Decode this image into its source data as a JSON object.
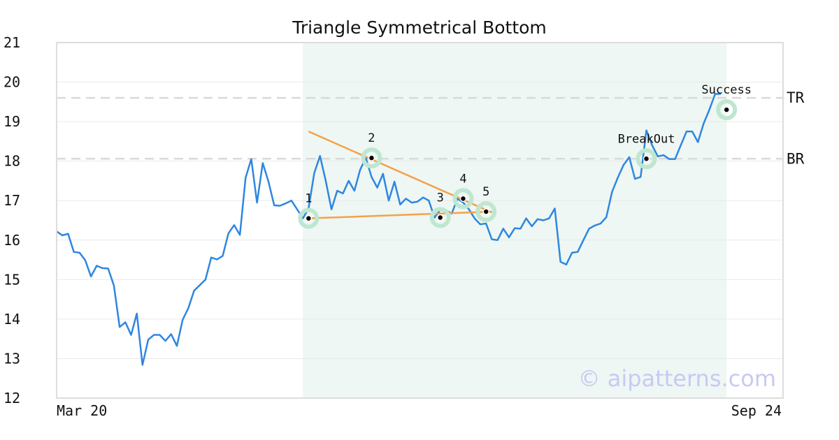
{
  "chart_data": {
    "type": "line",
    "title": "Triangle Symmetrical Bottom",
    "xlabel": "",
    "ylabel": "",
    "ylim": [
      12,
      21
    ],
    "y_ticks": [
      12,
      13,
      14,
      15,
      16,
      17,
      18,
      19,
      20,
      21
    ],
    "x_ticks": [
      "Mar 20",
      "Sep 24"
    ],
    "grid": true,
    "watermark": "© aipatterns.com",
    "colors": {
      "price": "#2f86e0",
      "trendline": "#f5a04a",
      "highlight": "#eef7f3",
      "marker_halo": "#bfe7d0",
      "level_line": "#d9d9d9",
      "frame": "#dddddd",
      "watermark": "#c9c9f3"
    },
    "series": [
      {
        "values": [
          16.22,
          16.12,
          16.16,
          15.7,
          15.68,
          15.49,
          15.08,
          15.35,
          15.29,
          15.28,
          14.85,
          13.8,
          13.92,
          13.6,
          14.14,
          12.84,
          13.48,
          13.6,
          13.6,
          13.45,
          13.62,
          13.32,
          13.98,
          14.28,
          14.72,
          14.86,
          15.0,
          15.56,
          15.51,
          15.6,
          16.17,
          16.38,
          16.13,
          17.58,
          18.05,
          16.95,
          17.95,
          17.48,
          16.88,
          16.87,
          16.93,
          17.0,
          16.78,
          16.55,
          16.8,
          17.7,
          18.13,
          17.5,
          16.78,
          17.25,
          17.18,
          17.5,
          17.25,
          17.78,
          18.08,
          17.6,
          17.33,
          17.68,
          17.0,
          17.48,
          16.9,
          17.05,
          16.95,
          16.97,
          17.08,
          17.0,
          16.57,
          16.76,
          16.75,
          16.67,
          17.05,
          16.95,
          16.78,
          16.55,
          16.4,
          16.42,
          16.02,
          16.0,
          16.29,
          16.07,
          16.3,
          16.29,
          16.55,
          16.35,
          16.53,
          16.5,
          16.55,
          16.8,
          15.45,
          15.38,
          15.68,
          15.7,
          16.0,
          16.29,
          16.37,
          16.42,
          16.58,
          17.22,
          17.58,
          17.9,
          18.1,
          17.55,
          17.6,
          18.78,
          18.4,
          18.12,
          18.15,
          18.05,
          18.05,
          18.4,
          18.75,
          18.75,
          18.48,
          18.95,
          19.3,
          19.7,
          19.7
        ]
      }
    ],
    "highlight_range": {
      "start_index": 43,
      "end_index": 117
    },
    "trendlines": [
      {
        "from": {
          "index": 44,
          "value": 18.75
        },
        "to": {
          "index": 76,
          "value": 16.7
        }
      },
      {
        "from": {
          "index": 44,
          "value": 16.55
        },
        "to": {
          "index": 76,
          "value": 16.72
        }
      }
    ],
    "pattern_points": [
      {
        "label": "1",
        "index": 44,
        "value": 16.55
      },
      {
        "label": "2",
        "index": 55,
        "value": 18.08
      },
      {
        "label": "3",
        "index": 67,
        "value": 16.57
      },
      {
        "label": "4",
        "index": 71,
        "value": 17.05
      },
      {
        "label": "5",
        "index": 75,
        "value": 16.72
      },
      {
        "label": "BreakOut",
        "index": 103,
        "value": 18.06
      },
      {
        "label": "Success",
        "index": 117,
        "value": 19.3
      }
    ],
    "levels": [
      {
        "label": "TR",
        "value": 19.6
      },
      {
        "label": "BR",
        "value": 18.06
      }
    ]
  }
}
